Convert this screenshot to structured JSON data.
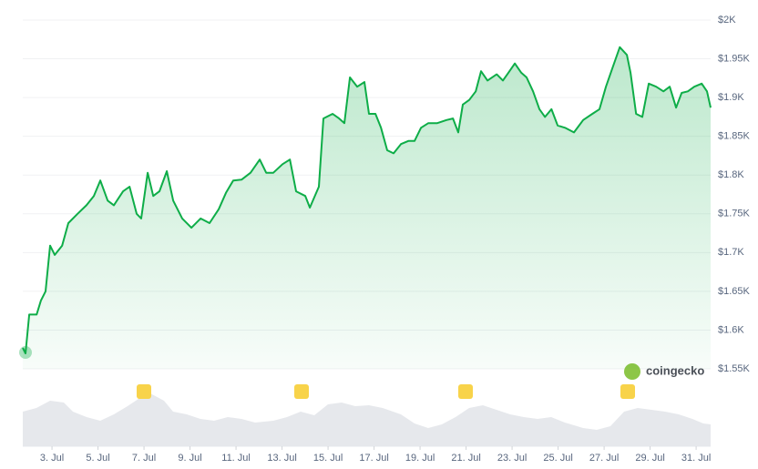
{
  "chart_data": {
    "type": "line",
    "color": "#0ead48",
    "grid": true,
    "watermark": "coingecko",
    "x": [
      1.73,
      1.85,
      2.01,
      2.33,
      2.52,
      2.72,
      2.92,
      3.12,
      3.44,
      3.71,
      4.11,
      4.5,
      4.82,
      5.1,
      5.42,
      5.69,
      6.09,
      6.37,
      6.68,
      6.88,
      7.16,
      7.4,
      7.67,
      7.99,
      8.27,
      8.66,
      9.06,
      9.46,
      9.85,
      10.25,
      10.56,
      10.88,
      11.24,
      11.63,
      12.03,
      12.31,
      12.62,
      13.02,
      13.34,
      13.61,
      14.01,
      14.21,
      14.6,
      14.8,
      15.2,
      15.48,
      15.71,
      15.95,
      16.27,
      16.58,
      16.78,
      17.06,
      17.3,
      17.57,
      17.85,
      18.17,
      18.49,
      18.76,
      19.04,
      19.36,
      19.75,
      20.15,
      20.43,
      20.66,
      20.86,
      21.14,
      21.42,
      21.65,
      21.93,
      22.33,
      22.6,
      22.84,
      23.12,
      23.4,
      23.63,
      23.91,
      24.19,
      24.43,
      24.71,
      24.98,
      25.3,
      25.69,
      26.09,
      26.49,
      26.8,
      27.08,
      27.36,
      27.68,
      27.99,
      28.15,
      28.39,
      28.66,
      28.94,
      29.26,
      29.58,
      29.85,
      30.13,
      30.37,
      30.64,
      30.92,
      31.24,
      31.47,
      31.63
    ],
    "values": [
      1577,
      1570,
      1620,
      1620,
      1638,
      1650,
      1709,
      1697,
      1709,
      1738,
      1750,
      1761,
      1773,
      1793,
      1767,
      1761,
      1779,
      1785,
      1750,
      1744,
      1803,
      1773,
      1779,
      1805,
      1767,
      1744,
      1732,
      1744,
      1738,
      1756,
      1777,
      1793,
      1794,
      1803,
      1820,
      1803,
      1803,
      1814,
      1820,
      1779,
      1773,
      1758,
      1785,
      1873,
      1879,
      1873,
      1867,
      1926,
      1914,
      1920,
      1879,
      1879,
      1861,
      1832,
      1828,
      1840,
      1844,
      1844,
      1861,
      1867,
      1867,
      1871,
      1873,
      1855,
      1891,
      1897,
      1908,
      1934,
      1922,
      1930,
      1922,
      1932,
      1944,
      1932,
      1926,
      1908,
      1885,
      1875,
      1885,
      1864,
      1861,
      1855,
      1871,
      1879,
      1885,
      1914,
      1938,
      1965,
      1955,
      1932,
      1879,
      1875,
      1918,
      1914,
      1908,
      1914,
      1887,
      1906,
      1908,
      1914,
      1918,
      1908,
      1887
    ],
    "xlim": [
      1.73,
      31.63
    ],
    "xticks": [
      {
        "value": 3,
        "label": "3. Jul"
      },
      {
        "value": 5,
        "label": "5. Jul"
      },
      {
        "value": 7,
        "label": "7. Jul"
      },
      {
        "value": 9,
        "label": "9. Jul"
      },
      {
        "value": 11,
        "label": "11. Jul"
      },
      {
        "value": 13,
        "label": "13. Jul"
      },
      {
        "value": 15,
        "label": "15. Jul"
      },
      {
        "value": 17,
        "label": "17. Jul"
      },
      {
        "value": 19,
        "label": "19. Jul"
      },
      {
        "value": 21,
        "label": "21. Jul"
      },
      {
        "value": 23,
        "label": "23. Jul"
      },
      {
        "value": 25,
        "label": "25. Jul"
      },
      {
        "value": 27,
        "label": "27. Jul"
      },
      {
        "value": 29,
        "label": "29. Jul"
      },
      {
        "value": 31,
        "label": "31. Jul"
      }
    ],
    "ylim": [
      1550,
      2000
    ],
    "yticks": [
      {
        "value": 1550,
        "label": "$1.55K"
      },
      {
        "value": 1600,
        "label": "$1.6K"
      },
      {
        "value": 1650,
        "label": "$1.65K"
      },
      {
        "value": 1700,
        "label": "$1.7K"
      },
      {
        "value": 1750,
        "label": "$1.75K"
      },
      {
        "value": 1800,
        "label": "$1.8K"
      },
      {
        "value": 1850,
        "label": "$1.85K"
      },
      {
        "value": 1900,
        "label": "$1.9K"
      },
      {
        "value": 1950,
        "label": "$1.95K"
      },
      {
        "value": 2000,
        "label": "$2K"
      }
    ]
  }
}
